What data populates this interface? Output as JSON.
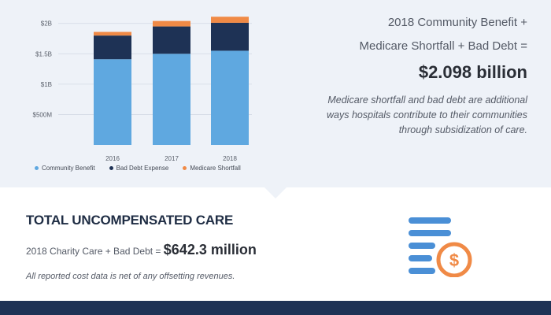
{
  "chart_data": {
    "type": "bar",
    "stacked": true,
    "categories": [
      "2016",
      "2017",
      "2018"
    ],
    "y_ticks": [
      "$2B",
      "$1.5B",
      "$1B",
      "$500M"
    ],
    "series": [
      {
        "name": "Community Benefit",
        "values": [
          1.41,
          1.5,
          1.55
        ],
        "color": "#5fa8e0"
      },
      {
        "name": "Bad Debt Expense",
        "values": [
          0.39,
          0.45,
          0.46
        ],
        "color": "#1e3255"
      },
      {
        "name": "Medicare Shortfall",
        "values": [
          0.06,
          0.09,
          0.1
        ],
        "color": "#f08a46"
      }
    ],
    "legend_position": "bottom",
    "grid": true
  },
  "benefit": {
    "line1": "2018 Community Benefit +",
    "line2": "Medicare Shortfall + Bad Debt =",
    "total": "$2.098 billion",
    "note": "Medicare shortfall and bad debt are additional ways hospitals contribute to their communities through subsidization of care."
  },
  "uncompensated": {
    "title": "TOTAL UNCOMPENSATED CARE",
    "equation": "2018 Charity Care + Bad Debt =",
    "amount": "$642.3 million",
    "note": "All reported cost data is net of any offsetting revenues."
  },
  "icon": {
    "name": "stacked-bars-dollar-icon",
    "bar_color": "#4a8fd6",
    "coin_color": "#f08a46"
  }
}
